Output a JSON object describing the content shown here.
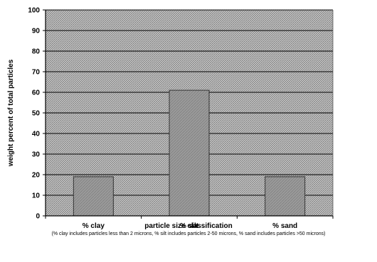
{
  "chart_data": {
    "type": "bar",
    "categories": [
      "% clay",
      "% silt",
      "% sand"
    ],
    "values": [
      19,
      61,
      19
    ],
    "ylabel": "weight percent of total particles",
    "xlabel": "particle size classification",
    "footnote": "(% clay includes particles less than 2 microns, % silt includes particles 2-50 microns, % sand includes particles >50 microns)",
    "ylim": [
      0,
      100
    ],
    "yticks": [
      0,
      10,
      20,
      30,
      40,
      50,
      60,
      70,
      80,
      90,
      100
    ],
    "grid": true,
    "legend": "none"
  }
}
